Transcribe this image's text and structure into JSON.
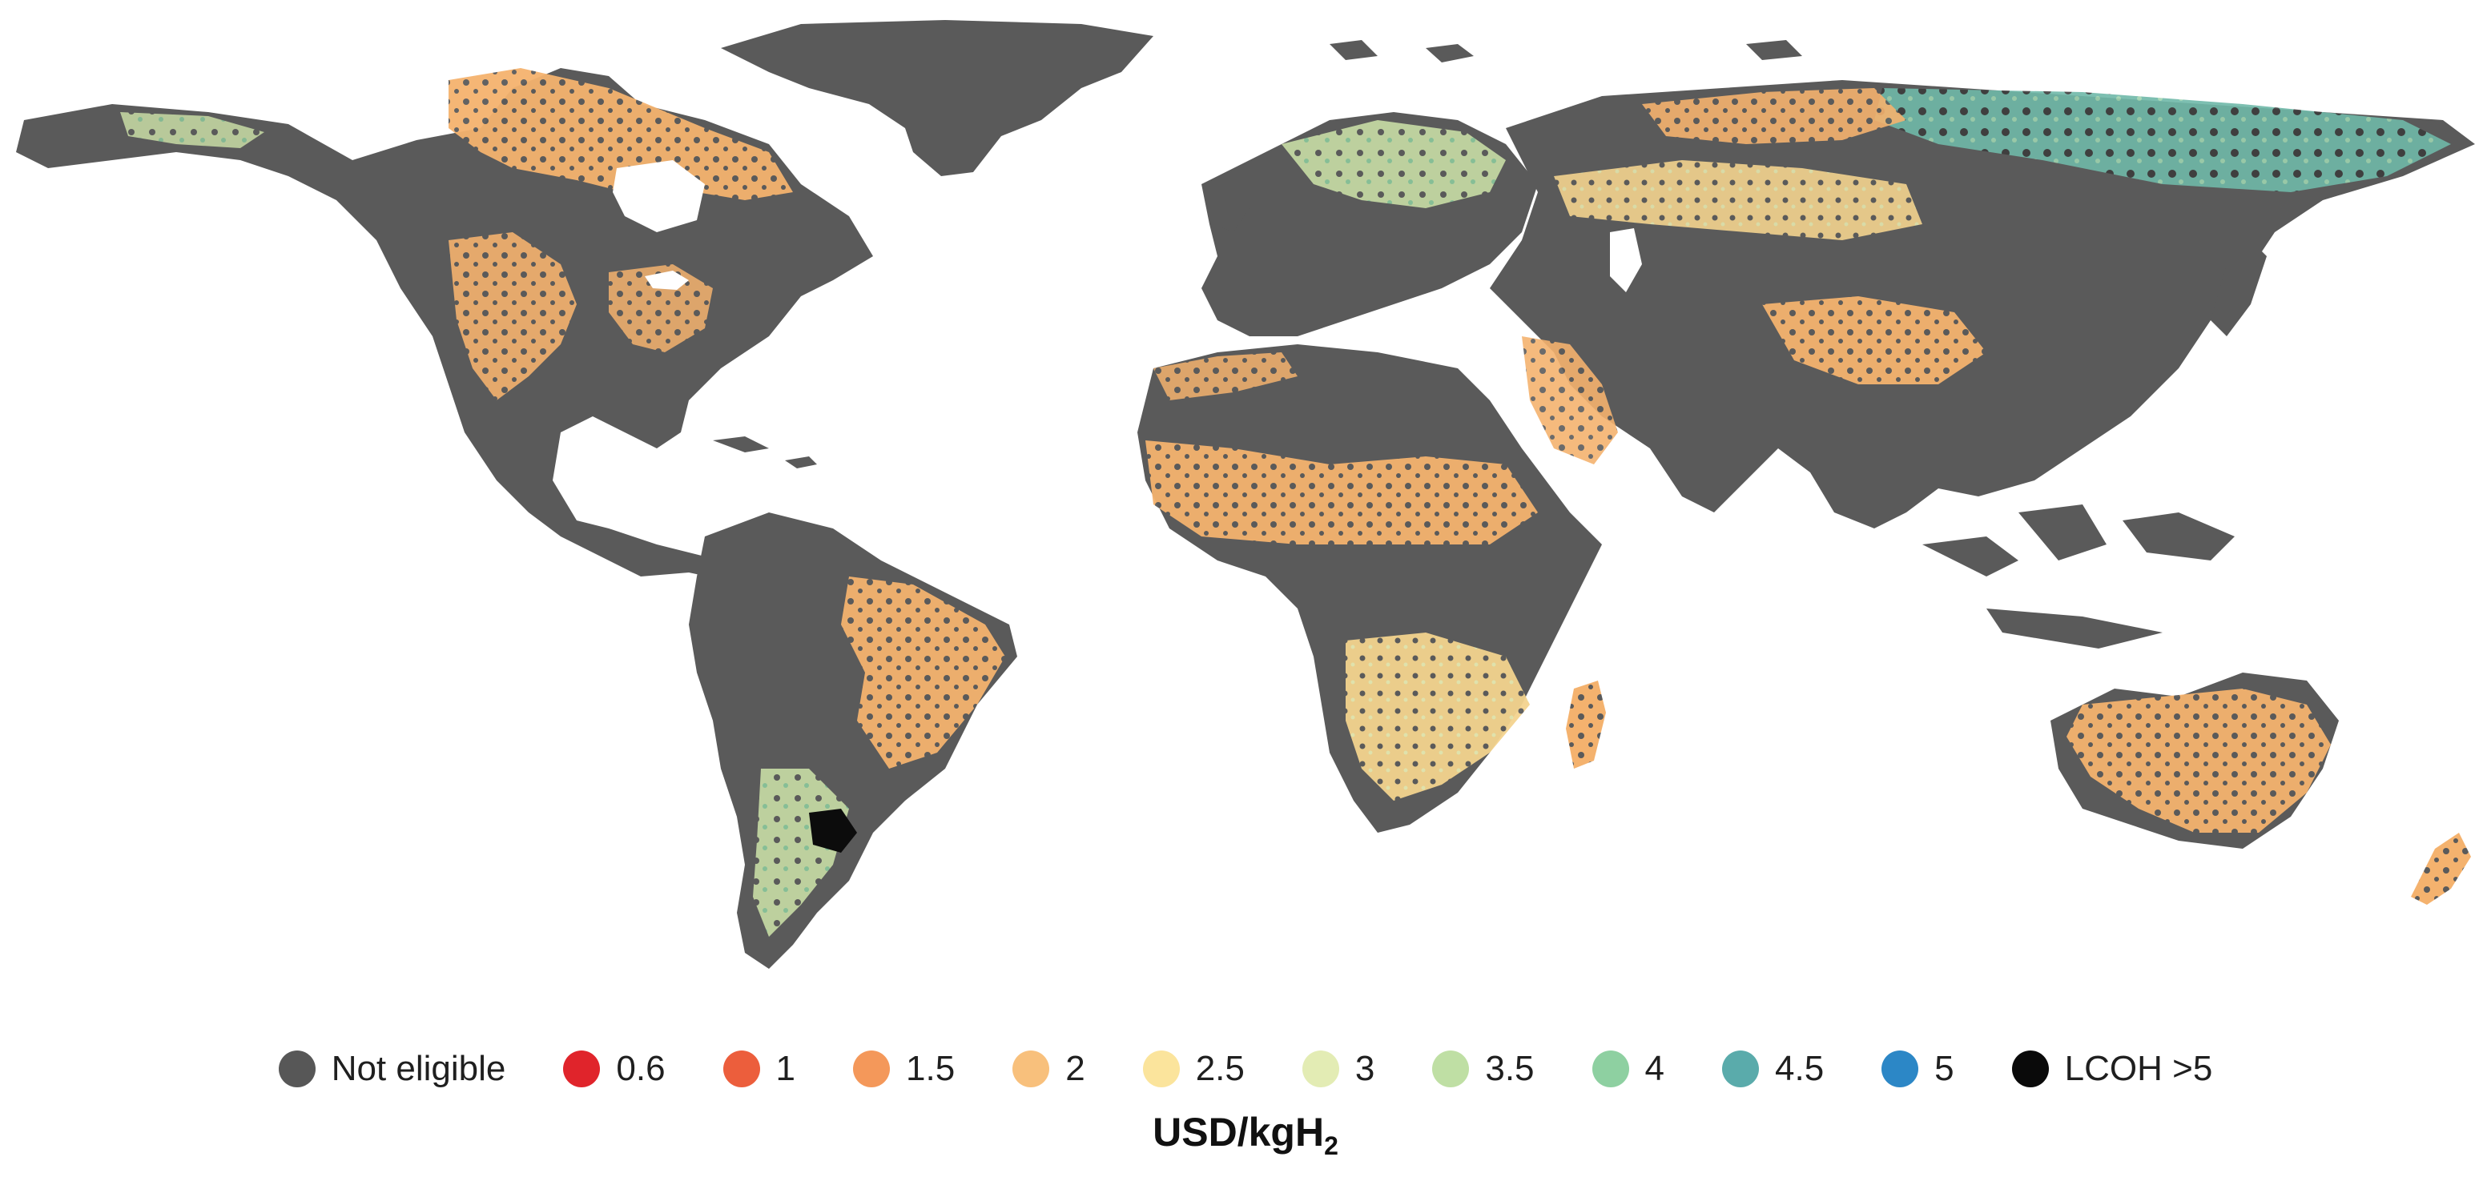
{
  "colors": {
    "not_eligible": "#5a5a5a",
    "water": "#ffffff"
  },
  "legend": {
    "items": [
      {
        "label": "Not eligible",
        "color": "#575757"
      },
      {
        "label": "0.6",
        "color": "#e0242b"
      },
      {
        "label": "1",
        "color": "#ec5e3c"
      },
      {
        "label": "1.5",
        "color": "#f4985a"
      },
      {
        "label": "2",
        "color": "#f8c07c"
      },
      {
        "label": "2.5",
        "color": "#fbe49c"
      },
      {
        "label": "3",
        "color": "#e3ecb4"
      },
      {
        "label": "3.5",
        "color": "#bfdfa4"
      },
      {
        "label": "4",
        "color": "#8ed0a1"
      },
      {
        "label": "4.5",
        "color": "#5aabab"
      },
      {
        "label": "5",
        "color": "#2c87c6"
      },
      {
        "label": "LCOH >5",
        "color": "#0a0a0a"
      }
    ],
    "unit_main": "USD/kgH",
    "unit_sub": "2"
  },
  "map": {
    "regions": [
      {
        "name": "greenland",
        "value_class": "Not eligible"
      },
      {
        "name": "north-america",
        "value_class": "mixed"
      },
      {
        "name": "south-america",
        "value_class": "mixed"
      },
      {
        "name": "europe",
        "value_class": "mixed"
      },
      {
        "name": "africa",
        "value_class": "mixed"
      },
      {
        "name": "asia",
        "value_class": "mixed"
      },
      {
        "name": "australia",
        "value_class": "mixed"
      },
      {
        "name": "new-zealand",
        "value_class": "mixed"
      }
    ]
  }
}
